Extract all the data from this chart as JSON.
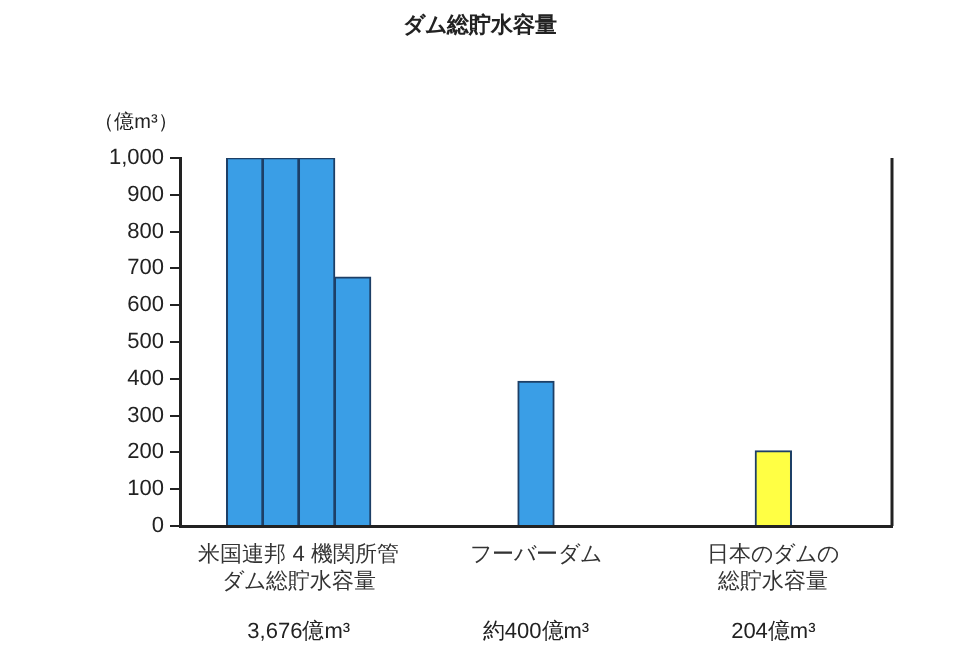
{
  "chart_data": {
    "type": "bar",
    "title": "ダム総貯水容量",
    "ylabel": "（億m³）",
    "categories": [
      "米国連邦 4 機関所管ダム総貯水容量",
      "フーバーダム",
      "日本のダムの総貯水容量"
    ],
    "series": [
      {
        "color": "#3a9ee6",
        "values": [
          1000,
          null,
          null
        ]
      },
      {
        "color": "#3a9ee6",
        "values": [
          1000,
          null,
          null
        ]
      },
      {
        "color": "#3a9ee6",
        "values": [
          1000,
          null,
          null
        ]
      },
      {
        "colors": [
          "#3a9ee6",
          "#3a9ee6",
          "#ffff44"
        ],
        "values": [
          676,
          393,
          204
        ]
      }
    ],
    "annotations": [
      "3,676億m³",
      "約400億m³",
      "204億m³"
    ],
    "ylim": [
      0,
      1000
    ],
    "yticks": [
      0,
      100,
      200,
      300,
      400,
      500,
      600,
      700,
      800,
      900,
      {
        "value": 1000,
        "label": "1,000"
      }
    ],
    "grid": false,
    "legend": false
  }
}
